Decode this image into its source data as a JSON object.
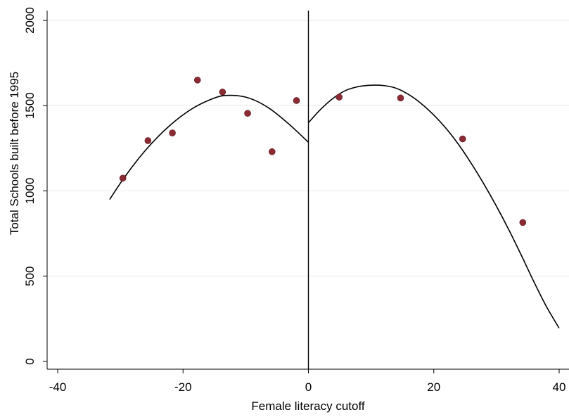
{
  "chart_data": {
    "type": "scatter",
    "xlabel": "Female literacy cutoff",
    "ylabel": "Total Schools built before 1995",
    "xlim": [
      -40,
      40
    ],
    "ylim": [
      0,
      2000
    ],
    "x_ticks": [
      -40,
      -20,
      0,
      20,
      40
    ],
    "y_ticks": [
      0,
      500,
      1000,
      1500,
      2000
    ],
    "x_tick_labels": [
      "-40",
      "-20",
      "0",
      "20",
      "40"
    ],
    "y_tick_labels": [
      "0",
      "500",
      "1000",
      "1500",
      "2000"
    ],
    "grid": "horizontal",
    "cutoff_x": 0,
    "marker_color": "#8b2a33",
    "line_color": "#000000",
    "points": [
      {
        "x": -29.6,
        "y": 1075
      },
      {
        "x": -25.6,
        "y": 1295
      },
      {
        "x": -21.7,
        "y": 1340
      },
      {
        "x": -17.7,
        "y": 1650
      },
      {
        "x": -13.7,
        "y": 1580
      },
      {
        "x": -9.7,
        "y": 1455
      },
      {
        "x": -5.8,
        "y": 1230
      },
      {
        "x": -1.9,
        "y": 1530
      },
      {
        "x": 4.9,
        "y": 1550
      },
      {
        "x": 14.7,
        "y": 1545
      },
      {
        "x": 24.6,
        "y": 1305
      },
      {
        "x": 34.2,
        "y": 815
      }
    ],
    "fit_left": {
      "x": [
        -31.7,
        -30,
        -28,
        -26,
        -24,
        -22,
        -20,
        -18,
        -16,
        -14,
        -12,
        -10,
        -8,
        -6,
        -4,
        -2,
        0
      ],
      "y": [
        950,
        1045,
        1147,
        1238,
        1318,
        1387,
        1446,
        1494,
        1530,
        1556,
        1560,
        1550,
        1522,
        1478,
        1420,
        1355,
        1285
      ]
    },
    "fit_right": {
      "x": [
        0,
        2,
        4,
        6,
        8,
        10,
        12,
        14,
        16,
        18,
        20,
        22,
        24,
        26,
        28,
        30,
        32,
        34,
        36,
        38,
        40
      ],
      "y": [
        1400,
        1480,
        1545,
        1590,
        1612,
        1620,
        1618,
        1602,
        1565,
        1512,
        1445,
        1365,
        1270,
        1160,
        1040,
        910,
        770,
        620,
        465,
        320,
        195
      ]
    }
  }
}
